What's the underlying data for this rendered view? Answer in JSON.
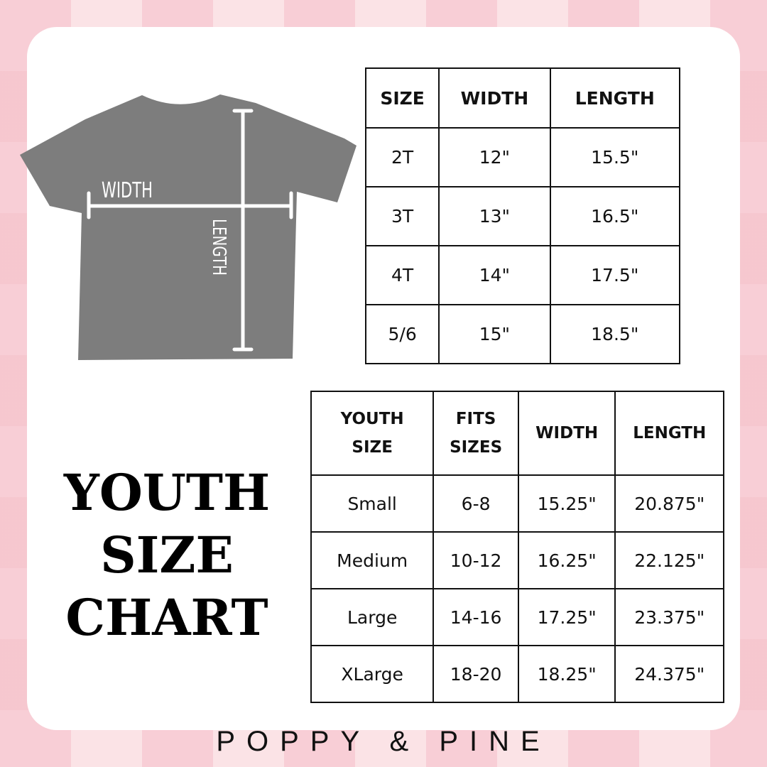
{
  "shirt_labels": {
    "width": "WIDTH",
    "length": "LENGTH"
  },
  "toddler_table": {
    "headers": [
      "SIZE",
      "WIDTH",
      "LENGTH"
    ],
    "rows": [
      [
        "2T",
        "12\"",
        "15.5\""
      ],
      [
        "3T",
        "13\"",
        "16.5\""
      ],
      [
        "4T",
        "14\"",
        "17.5\""
      ],
      [
        "5/6",
        "15\"",
        "18.5\""
      ]
    ]
  },
  "youth_table": {
    "headers": [
      [
        "YOUTH",
        "SIZE"
      ],
      [
        "FITS",
        "SIZES"
      ],
      [
        "WIDTH"
      ],
      [
        "LENGTH"
      ]
    ],
    "rows": [
      [
        "Small",
        "6-8",
        "15.25\"",
        "20.875\""
      ],
      [
        "Medium",
        "10-12",
        "16.25\"",
        "22.125\""
      ],
      [
        "Large",
        "14-16",
        "17.25\"",
        "23.375\""
      ],
      [
        "XLarge",
        "18-20",
        "18.25\"",
        "24.375\""
      ]
    ]
  },
  "title": [
    "YOUTH",
    "SIZE",
    "CHART"
  ],
  "footer": "POPPY & PINE",
  "colors": {
    "shirt": "#7d7d7d",
    "background_pink": "#f6c9cf"
  }
}
